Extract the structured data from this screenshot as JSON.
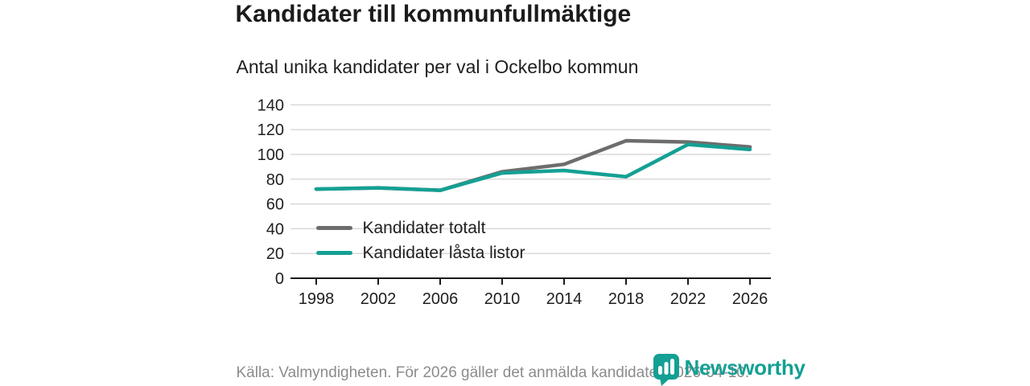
{
  "chart_data": {
    "type": "line",
    "title": "Kandidater till kommunfullmäktige",
    "subtitle": "Antal unika kandidater per val i Ockelbo kommun",
    "categories": [
      "1998",
      "2002",
      "2006",
      "2010",
      "2014",
      "2018",
      "2022",
      "2026"
    ],
    "series": [
      {
        "name": "Kandidater totalt",
        "color": "#6d6d6d",
        "values": [
          72,
          73,
          71,
          86,
          92,
          111,
          110,
          106
        ]
      },
      {
        "name": "Kandidater låsta listor",
        "color": "#14a094",
        "values": [
          72,
          73,
          71,
          85,
          87,
          82,
          108,
          104
        ]
      }
    ],
    "xlabel": "",
    "ylabel": "",
    "ylim": [
      0,
      140
    ],
    "yticks": [
      0,
      20,
      40,
      60,
      80,
      100,
      120,
      140
    ],
    "grid": true,
    "gridline_color": "#d9d9d9",
    "axis_color": "#1a1a1a",
    "legend_position": "inside-bottom-left"
  },
  "footer": {
    "source_text": "Källa: Valmyndigheten. För 2026 gäller det anmälda kandidater 2026-04-10.",
    "brand": "Newsworthy",
    "brand_color": "#14a094"
  }
}
